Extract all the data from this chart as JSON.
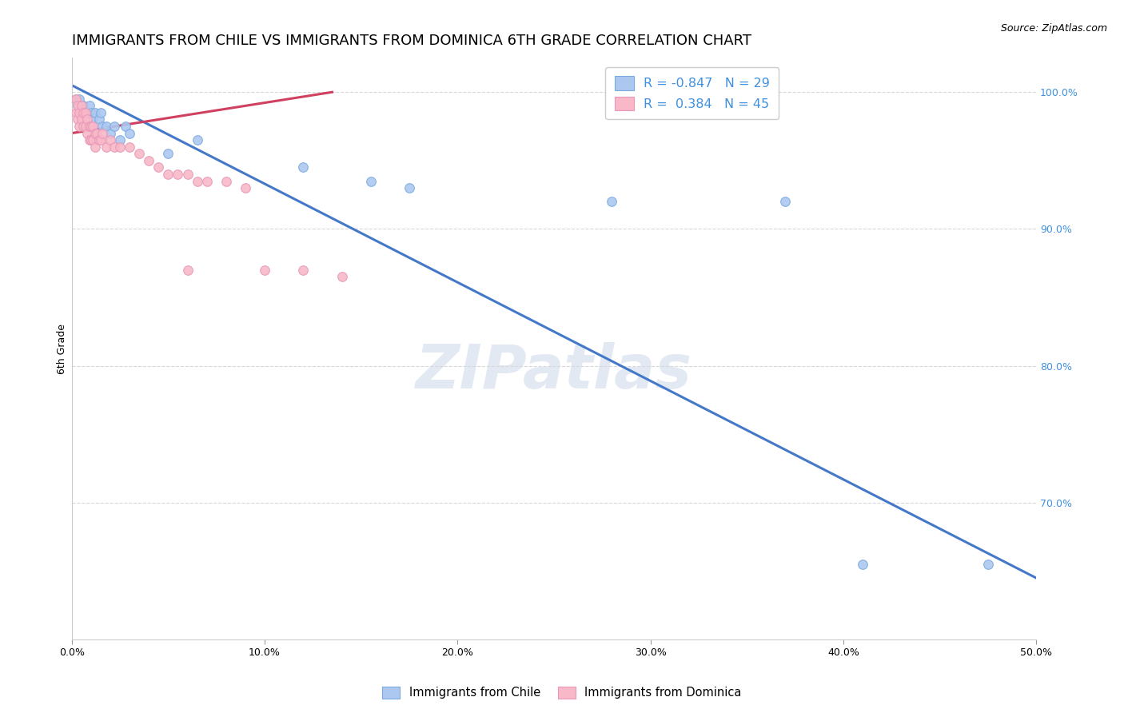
{
  "title": "IMMIGRANTS FROM CHILE VS IMMIGRANTS FROM DOMINICA 6TH GRADE CORRELATION CHART",
  "source": "Source: ZipAtlas.com",
  "ylabel": "6th Grade",
  "xlim": [
    0.0,
    0.5
  ],
  "ylim": [
    0.6,
    1.025
  ],
  "xtick_labels": [
    "0.0%",
    "10.0%",
    "20.0%",
    "30.0%",
    "40.0%",
    "50.0%"
  ],
  "xtick_values": [
    0.0,
    0.1,
    0.2,
    0.3,
    0.4,
    0.5
  ],
  "ytick_labels_right": [
    "100.0%",
    "90.0%",
    "80.0%",
    "70.0%"
  ],
  "ytick_values_right": [
    1.0,
    0.9,
    0.8,
    0.7
  ],
  "legend_entries": [
    {
      "label": "R = -0.847   N = 29",
      "color": "#adc8f0"
    },
    {
      "label": "R =  0.384   N = 45",
      "color": "#f8b8c8"
    }
  ],
  "blue_scatter_x": [
    0.002,
    0.003,
    0.004,
    0.005,
    0.006,
    0.007,
    0.008,
    0.009,
    0.01,
    0.011,
    0.012,
    0.014,
    0.015,
    0.016,
    0.018,
    0.02,
    0.022,
    0.025,
    0.028,
    0.03,
    0.05,
    0.065,
    0.12,
    0.155,
    0.175,
    0.28,
    0.37,
    0.41,
    0.475
  ],
  "blue_scatter_y": [
    0.995,
    0.99,
    0.995,
    0.985,
    0.99,
    0.985,
    0.985,
    0.99,
    0.985,
    0.98,
    0.985,
    0.98,
    0.985,
    0.975,
    0.975,
    0.97,
    0.975,
    0.965,
    0.975,
    0.97,
    0.955,
    0.965,
    0.945,
    0.935,
    0.93,
    0.92,
    0.92,
    0.655,
    0.655
  ],
  "pink_scatter_x": [
    0.002,
    0.002,
    0.003,
    0.003,
    0.004,
    0.004,
    0.005,
    0.005,
    0.006,
    0.006,
    0.007,
    0.007,
    0.008,
    0.008,
    0.009,
    0.009,
    0.01,
    0.01,
    0.011,
    0.011,
    0.012,
    0.012,
    0.013,
    0.014,
    0.015,
    0.016,
    0.018,
    0.02,
    0.022,
    0.025,
    0.03,
    0.035,
    0.04,
    0.045,
    0.05,
    0.055,
    0.06,
    0.065,
    0.07,
    0.08,
    0.09,
    0.1,
    0.12,
    0.14,
    0.06
  ],
  "pink_scatter_y": [
    0.995,
    0.985,
    0.99,
    0.98,
    0.985,
    0.975,
    0.99,
    0.98,
    0.985,
    0.975,
    0.985,
    0.975,
    0.98,
    0.97,
    0.975,
    0.965,
    0.975,
    0.965,
    0.975,
    0.965,
    0.97,
    0.96,
    0.97,
    0.965,
    0.965,
    0.97,
    0.96,
    0.965,
    0.96,
    0.96,
    0.96,
    0.955,
    0.95,
    0.945,
    0.94,
    0.94,
    0.94,
    0.935,
    0.935,
    0.935,
    0.93,
    0.87,
    0.87,
    0.865,
    0.87
  ],
  "blue_line_x": [
    0.0,
    0.5
  ],
  "blue_line_y": [
    1.005,
    0.645
  ],
  "pink_line_x": [
    0.0,
    0.135
  ],
  "pink_line_y": [
    0.97,
    1.0
  ],
  "watermark": "ZIPatlas",
  "background_color": "#ffffff",
  "scatter_size": 70,
  "blue_color": "#adc8f0",
  "pink_color": "#f8b8c8",
  "blue_edge_color": "#7aabe0",
  "pink_edge_color": "#e898b8",
  "blue_line_color": "#4478c8",
  "pink_line_color": "#d04060",
  "grid_color": "#d8d8d8",
  "axis_label_color": "#4090e0",
  "title_fontsize": 13,
  "axis_label_fontsize": 9,
  "tick_fontsize": 9,
  "source_fontsize": 9
}
